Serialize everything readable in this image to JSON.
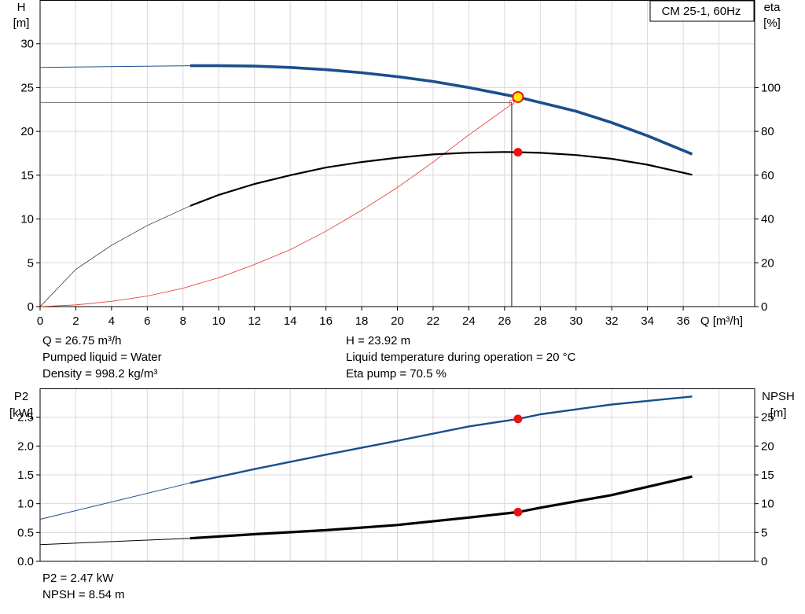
{
  "pump_name": "CM 25-1, 60Hz",
  "top_panel": {
    "y_left_label": [
      "H",
      "[m]"
    ],
    "y_right_label": [
      "eta",
      "[%]"
    ],
    "x_label": "Q [m³/h]",
    "x_ticks": [
      "0",
      "2",
      "4",
      "6",
      "8",
      "10",
      "12",
      "14",
      "16",
      "18",
      "20",
      "22",
      "24",
      "26",
      "28",
      "30",
      "32",
      "34",
      "36"
    ],
    "y_left_ticks": [
      "0",
      "5",
      "10",
      "15",
      "20",
      "25",
      "30"
    ],
    "y_right_ticks": [
      "0",
      "20",
      "40",
      "60",
      "80",
      "100"
    ]
  },
  "bottom_panel": {
    "y_left_label": [
      "P2",
      "[kW]"
    ],
    "y_right_label": [
      "NPSH",
      "[m]"
    ],
    "y_left_ticks": [
      "0.0",
      "0.5",
      "1.0",
      "1.5",
      "2.0",
      "2.5"
    ],
    "y_right_ticks": [
      "0",
      "5",
      "10",
      "15",
      "20",
      "25"
    ]
  },
  "info_top": {
    "left": [
      "Q = 26.75 m³/h",
      "Pumped liquid = Water",
      "Density = 998.2 kg/m³"
    ],
    "right": [
      "H = 23.92 m",
      "Liquid temperature during operation = 20 °C",
      "Eta pump = 70.5 %"
    ]
  },
  "info_bottom": {
    "left": [
      "P2 = 2.47 kW",
      "NPSH = 8.54 m"
    ]
  },
  "colors": {
    "head_curve": "#1a4f8c",
    "efficiency_curve": "#000000",
    "system_curve": "#e8322d",
    "grid": "#d8d8d8",
    "duty_point": "#ee1111",
    "duty_point_highlight": "#ffee00"
  },
  "chart_data": [
    {
      "type": "line",
      "panel": "top",
      "xlabel": "Q [m³/h]",
      "ylabel": "H [m]",
      "y2label": "eta [%]",
      "xlim": [
        0,
        40
      ],
      "ylim": [
        0,
        35
      ],
      "y2lim": [
        0,
        140
      ],
      "grid": true,
      "series": [
        {
          "axis": "left",
          "role": "head",
          "x": [
            0,
            8.4,
            10,
            12,
            14,
            16,
            18,
            20,
            22,
            24,
            26,
            26.75,
            28,
            30,
            32,
            34,
            36.5
          ],
          "y": [
            27.3,
            27.5,
            27.5,
            27.45,
            27.3,
            27.05,
            26.7,
            26.25,
            25.7,
            25.0,
            24.2,
            23.92,
            23.3,
            22.3,
            21.0,
            19.5,
            17.4
          ]
        },
        {
          "axis": "right",
          "role": "efficiency",
          "x": [
            0,
            2,
            4,
            6,
            8.4,
            10,
            12,
            14,
            16,
            18,
            20,
            22,
            24,
            26,
            26.75,
            28,
            30,
            32,
            34,
            36.5
          ],
          "y": [
            0,
            17,
            28,
            37,
            46,
            51,
            56,
            60,
            63.5,
            66,
            68,
            69.5,
            70.3,
            70.6,
            70.5,
            70.2,
            69.2,
            67.5,
            64.8,
            60.2
          ]
        },
        {
          "axis": "left",
          "role": "system",
          "x": [
            0,
            2,
            4,
            6,
            8,
            10,
            12,
            14,
            16,
            18,
            20,
            22,
            24,
            26.4
          ],
          "y": [
            0,
            0.2,
            0.6,
            1.2,
            2.1,
            3.3,
            4.8,
            6.5,
            8.6,
            11.0,
            13.6,
            16.5,
            19.6,
            23.1
          ]
        }
      ],
      "operating_point": {
        "q": 26.75,
        "h": 23.92,
        "eta": 70.5,
        "h_system": 23.3,
        "q_system": 26.4
      }
    },
    {
      "type": "line",
      "panel": "bottom",
      "ylabel": "P2 [kW]",
      "y2label": "NPSH [m]",
      "xlim": [
        0,
        40
      ],
      "ylim": [
        0,
        3.0
      ],
      "y2lim": [
        0,
        30
      ],
      "grid": true,
      "series": [
        {
          "axis": "left",
          "role": "p2",
          "x": [
            0,
            8.4,
            12,
            16,
            20,
            24,
            26.75,
            28,
            32,
            36.5
          ],
          "y": [
            0.73,
            1.36,
            1.6,
            1.85,
            2.09,
            2.34,
            2.47,
            2.55,
            2.72,
            2.86
          ]
        },
        {
          "axis": "right",
          "role": "npsh",
          "x": [
            0,
            8.4,
            12,
            16,
            20,
            24,
            26.75,
            28,
            32,
            36.5
          ],
          "y": [
            2.9,
            4.0,
            4.7,
            5.4,
            6.3,
            7.6,
            8.54,
            9.3,
            11.5,
            14.7
          ]
        }
      ],
      "operating_point": {
        "q": 26.75,
        "p2": 2.47,
        "npsh": 8.54
      }
    }
  ]
}
